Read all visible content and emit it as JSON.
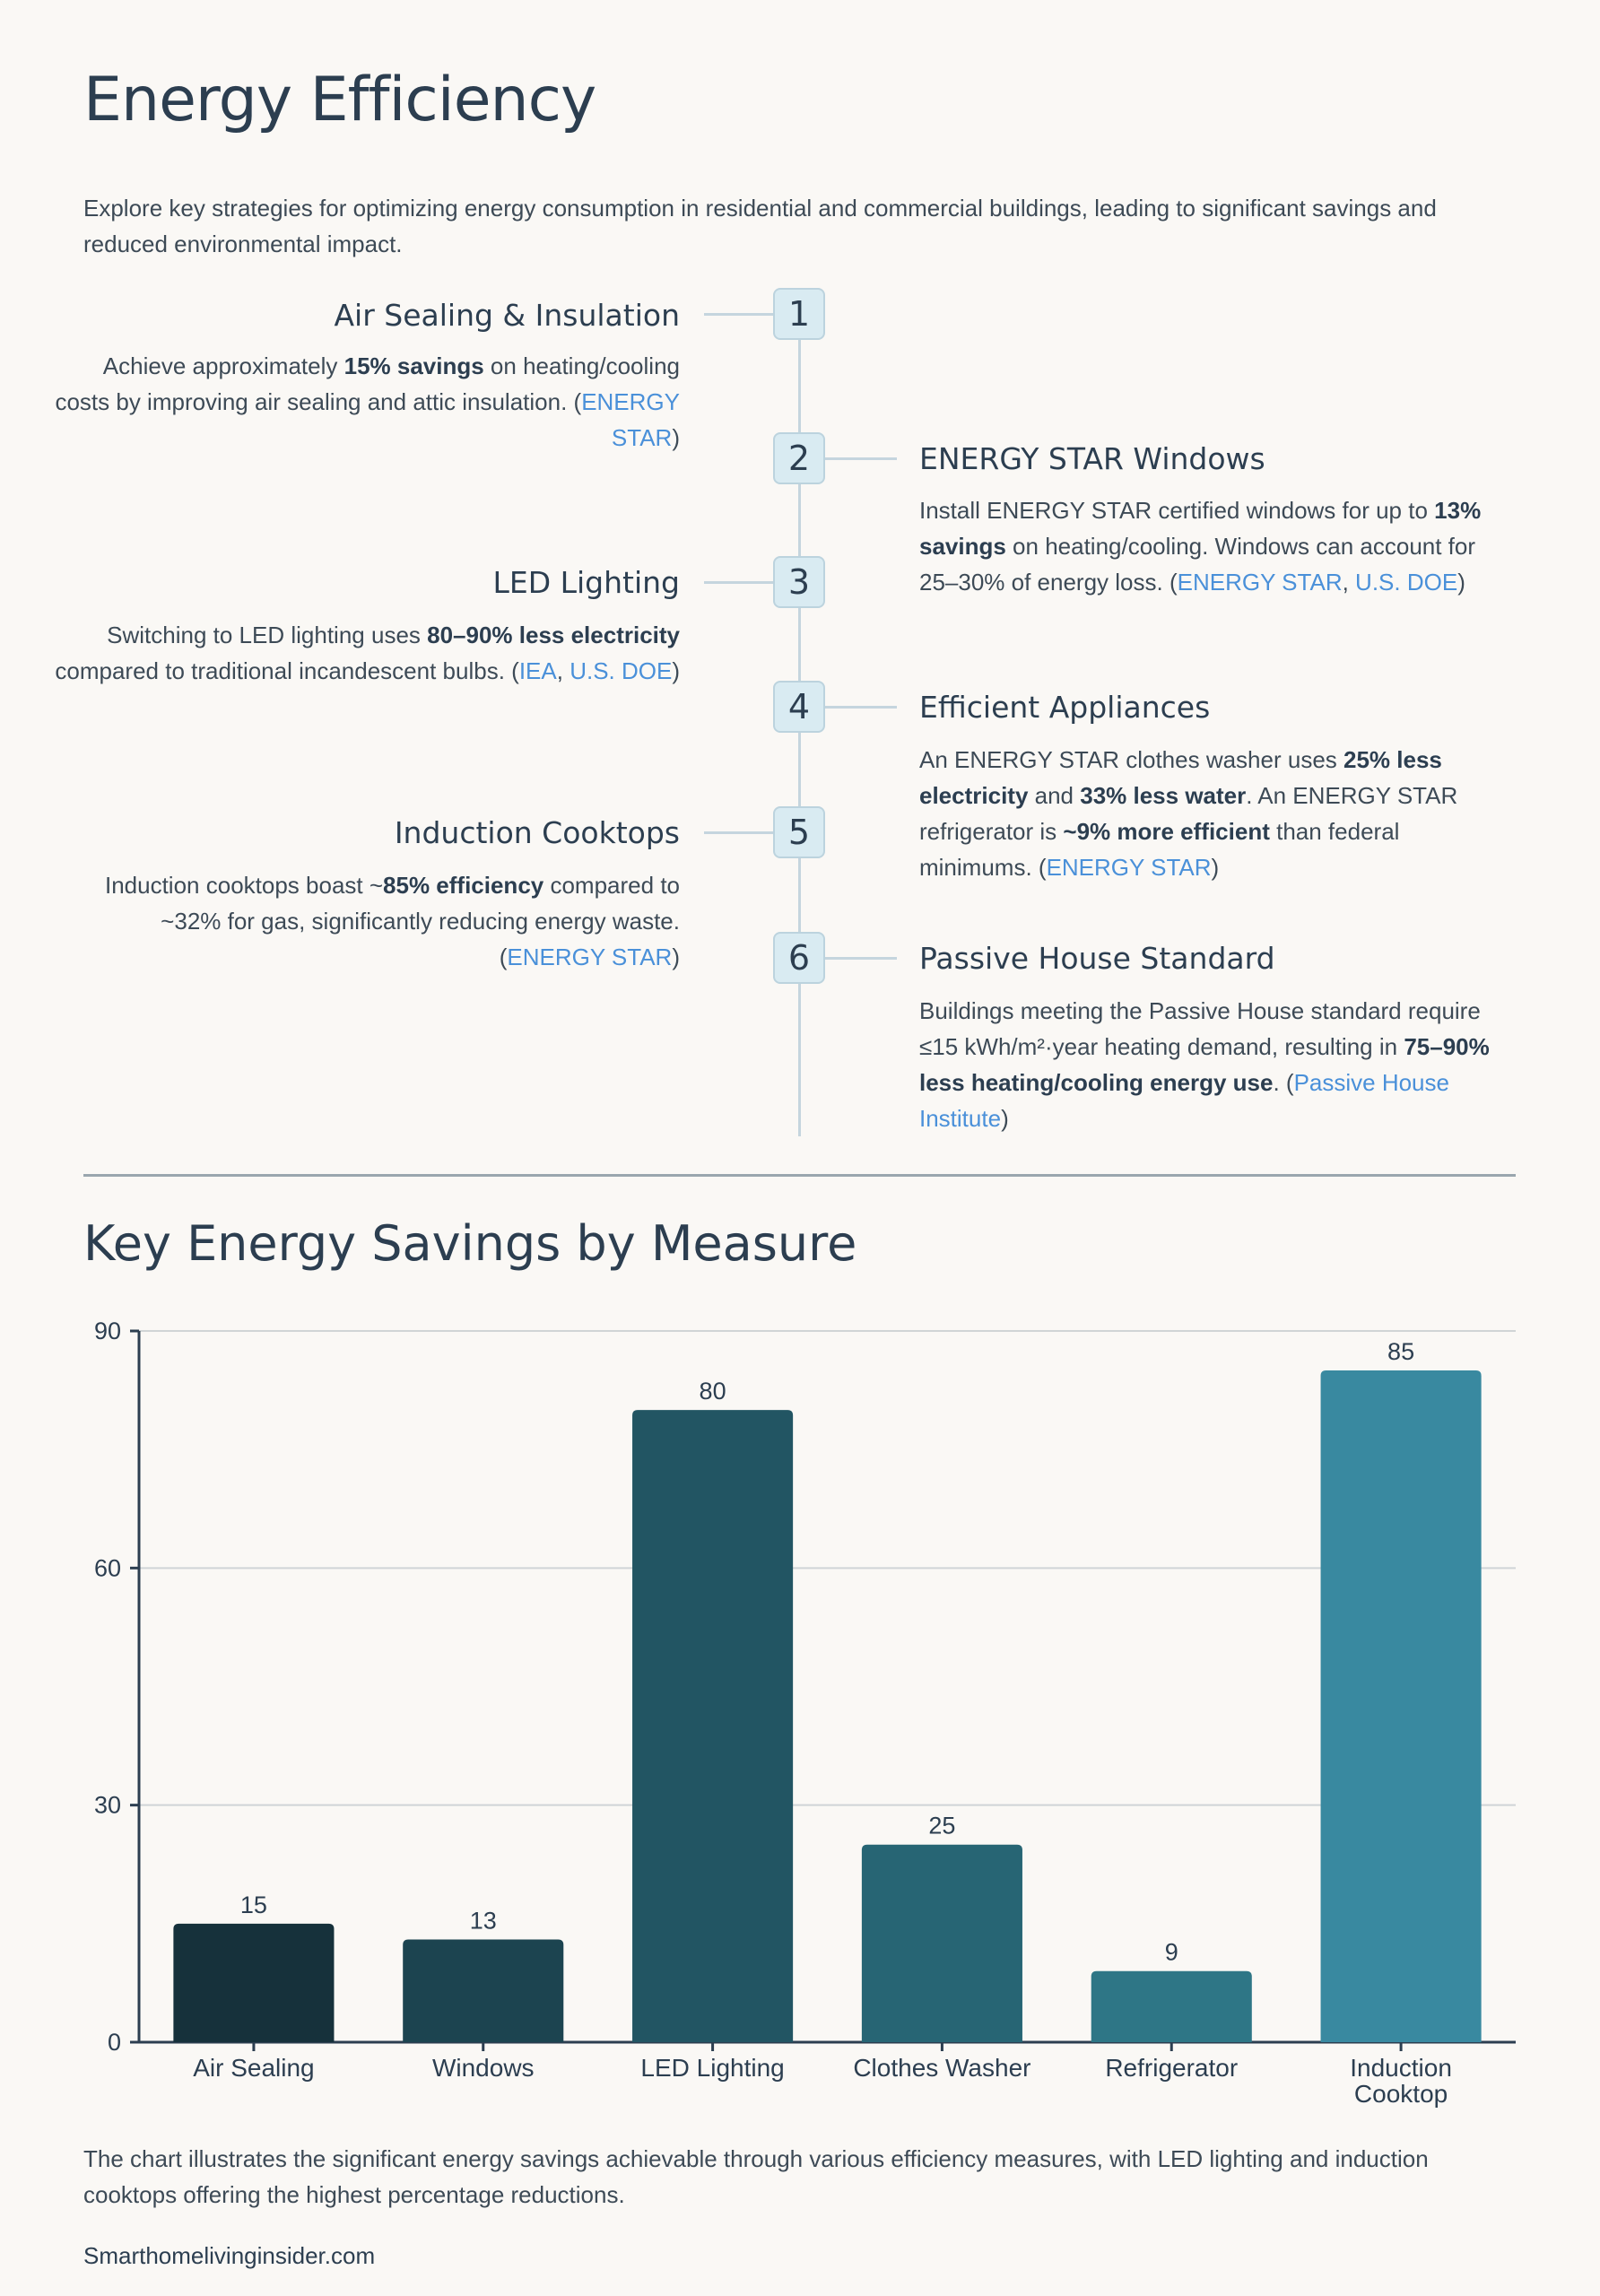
{
  "page": {
    "title": "Energy Efficiency",
    "intro": "Explore key strategies for optimizing energy consumption in residential and commercial buildings, leading to significant savings and reduced environmental impact."
  },
  "timeline": {
    "items": [
      {
        "number": "1",
        "title": "Air Sealing & Insulation",
        "side": "left",
        "text": [
          {
            "t": "Achieve approximately "
          },
          {
            "t": "15% savings",
            "bold": true
          },
          {
            "t": " on heating/cooling costs by improving air sealing and attic insulation. ("
          },
          {
            "t": "ENERGY STAR",
            "link": true
          },
          {
            "t": ")"
          }
        ]
      },
      {
        "number": "2",
        "title": "ENERGY STAR Windows",
        "side": "right",
        "text": [
          {
            "t": "Install ENERGY STAR certified windows for up to "
          },
          {
            "t": "13% savings",
            "bold": true
          },
          {
            "t": " on heating/cooling. Windows can account for 25–30% of energy loss. ("
          },
          {
            "t": "ENERGY STAR",
            "link": true
          },
          {
            "t": ", "
          },
          {
            "t": "U.S. DOE",
            "link": true
          },
          {
            "t": ")"
          }
        ]
      },
      {
        "number": "3",
        "title": "LED Lighting",
        "side": "left",
        "text": [
          {
            "t": "Switching to LED lighting uses "
          },
          {
            "t": "80–90% less electricity",
            "bold": true
          },
          {
            "t": " compared to traditional incandescent bulbs. ("
          },
          {
            "t": "IEA",
            "link": true
          },
          {
            "t": ", "
          },
          {
            "t": "U.S. DOE",
            "link": true
          },
          {
            "t": ")"
          }
        ]
      },
      {
        "number": "4",
        "title": "Efficient Appliances",
        "side": "right",
        "text": [
          {
            "t": "An ENERGY STAR clothes washer uses "
          },
          {
            "t": "25% less electricity",
            "bold": true
          },
          {
            "t": " and "
          },
          {
            "t": "33% less water",
            "bold": true
          },
          {
            "t": ". An ENERGY STAR refrigerator is "
          },
          {
            "t": "~9% more efficient",
            "bold": true
          },
          {
            "t": " than federal minimums. ("
          },
          {
            "t": "ENERGY STAR",
            "link": true
          },
          {
            "t": ")"
          }
        ]
      },
      {
        "number": "5",
        "title": "Induction Cooktops",
        "side": "left",
        "text": [
          {
            "t": "Induction cooktops boast ~"
          },
          {
            "t": "85% efficiency",
            "bold": true
          },
          {
            "t": " compared to ~32% for gas, significantly reducing energy waste. ("
          },
          {
            "t": "ENERGY STAR",
            "link": true
          },
          {
            "t": ")"
          }
        ]
      },
      {
        "number": "6",
        "title": "Passive House Standard",
        "side": "right",
        "text": [
          {
            "t": "Buildings meeting the Passive House standard require ≤15 kWh/m²·year heating demand, resulting in "
          },
          {
            "t": "75–90% less heating/cooling energy use",
            "bold": true
          },
          {
            "t": ". ("
          },
          {
            "t": "Passive House Institute",
            "link": true
          },
          {
            "t": ")"
          }
        ]
      }
    ]
  },
  "chart_section": {
    "title": "Key Energy Savings by Measure",
    "caption": "The chart illustrates the significant energy savings achievable through various efficiency measures, with LED lighting and induction cooktops offering the highest percentage reductions."
  },
  "chart_data": {
    "type": "bar",
    "title": "Key Energy Savings by Measure",
    "xlabel": "",
    "ylabel": "",
    "categories": [
      "Air Sealing",
      "Windows",
      "LED Lighting",
      "Clothes Washer",
      "Refrigerator",
      "Induction Cooktop"
    ],
    "category_labels": [
      [
        "Air Sealing"
      ],
      [
        "Windows"
      ],
      [
        "LED Lighting"
      ],
      [
        "Clothes Washer"
      ],
      [
        "Refrigerator"
      ],
      [
        "Induction",
        "Cooktop"
      ]
    ],
    "values": [
      15,
      13,
      80,
      25,
      9,
      85
    ],
    "data_labels": [
      "15",
      "13",
      "80",
      "25",
      "9",
      "85"
    ],
    "ylim": [
      0,
      90
    ],
    "yticks": [
      0,
      30,
      60,
      90
    ],
    "grid": true,
    "legend": "none",
    "colors": [
      "#16313b",
      "#1c4450",
      "#225563",
      "#276574",
      "#2e7686",
      "#3989a0"
    ]
  },
  "footer": {
    "source": "Smarthomelivinginsider.com"
  }
}
